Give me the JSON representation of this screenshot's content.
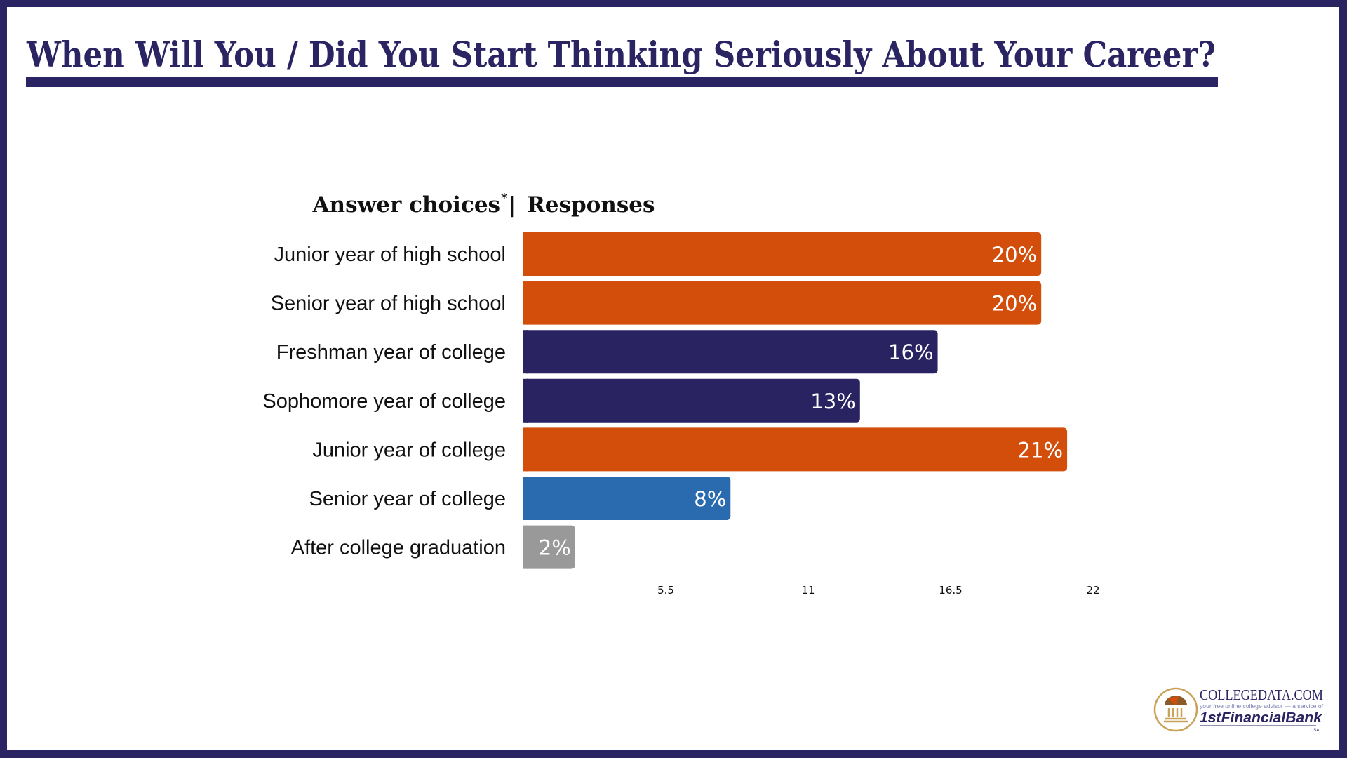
{
  "title": "When Will You / Did You Start Thinking Seriously About Your Career?",
  "chart_data": {
    "type": "bar",
    "orientation": "horizontal",
    "header_left": "Answer choices",
    "header_left_mark": "*",
    "header_sep": "|",
    "header_right": "Responses",
    "categories": [
      "Junior year of high school",
      "Senior year of high school",
      "Freshman year of college",
      "Sophomore year of college",
      "Junior year of college",
      "Senior year of college",
      "After college graduation"
    ],
    "values": [
      20,
      20,
      16,
      13,
      21,
      8,
      2
    ],
    "value_labels": [
      "20%",
      "20%",
      "16%",
      "13%",
      "21%",
      "8%",
      "2%"
    ],
    "colors": [
      "#d24e0a",
      "#d24e0a",
      "#2a2362",
      "#2a2362",
      "#d24e0a",
      "#2a6aaf",
      "#999999"
    ],
    "xlim": [
      0,
      22
    ],
    "xticks": [
      5.5,
      11,
      16.5,
      22
    ],
    "xtick_labels": [
      "5.5",
      "11",
      "16.5",
      "22"
    ],
    "grid": false
  },
  "logo": {
    "name": "CollegeData.com",
    "brand": "COLLEGEDATA.COM",
    "tagline": "your free online college advisor — a service of",
    "bank": "1stFinancialBank",
    "bank_suffix": "USA"
  },
  "colors": {
    "frame": "#2a2462",
    "title": "#2a2462"
  }
}
